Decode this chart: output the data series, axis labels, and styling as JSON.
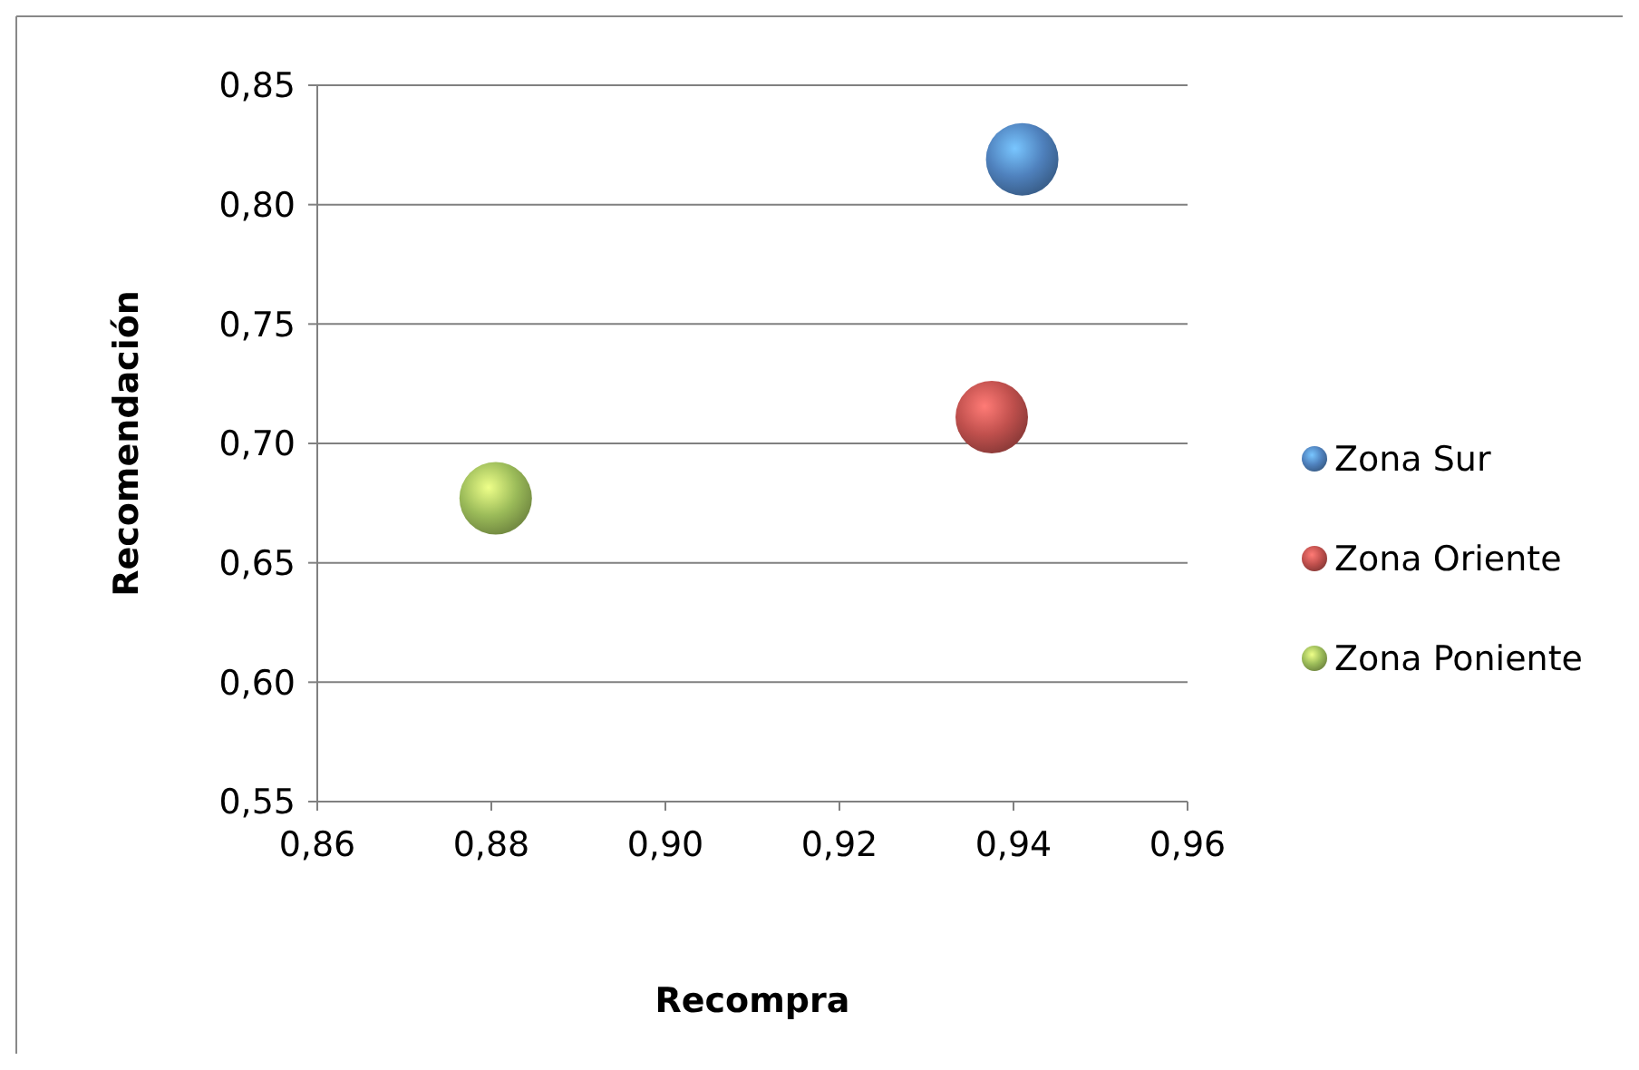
{
  "chart_data": {
    "type": "scatter",
    "xlabel": "Recompra",
    "ylabel": "Recomendación",
    "marker": "circle",
    "grid": "y",
    "legend": "right",
    "xlim": [
      0.86,
      0.96
    ],
    "xticks": [
      {
        "value": 0.86,
        "label": "0,86"
      },
      {
        "value": 0.88,
        "label": "0,88"
      },
      {
        "value": 0.9,
        "label": "0,90"
      },
      {
        "value": 0.92,
        "label": "0,92"
      },
      {
        "value": 0.94,
        "label": "0,94"
      },
      {
        "value": 0.96,
        "label": "0,96"
      }
    ],
    "ylim": [
      0.55,
      0.85
    ],
    "yticks": [
      {
        "value": 0.55,
        "label": "0,55"
      },
      {
        "value": 0.6,
        "label": "0,60"
      },
      {
        "value": 0.65,
        "label": "0,65"
      },
      {
        "value": 0.7,
        "label": "0,70"
      },
      {
        "value": 0.75,
        "label": "0,75"
      },
      {
        "value": 0.8,
        "label": "0,80"
      },
      {
        "value": 0.85,
        "label": "0,85"
      }
    ],
    "series": [
      {
        "name": "Zona Sur",
        "color": "#4f81bd",
        "x": [
          0.941
        ],
        "values": [
          0.819
        ]
      },
      {
        "name": "Zona Oriente",
        "color": "#c0504d",
        "x": [
          0.9375
        ],
        "values": [
          0.711
        ]
      },
      {
        "name": "Zona Poniente",
        "color": "#9bbb59",
        "x": [
          0.8805
        ],
        "values": [
          0.677
        ]
      }
    ]
  }
}
